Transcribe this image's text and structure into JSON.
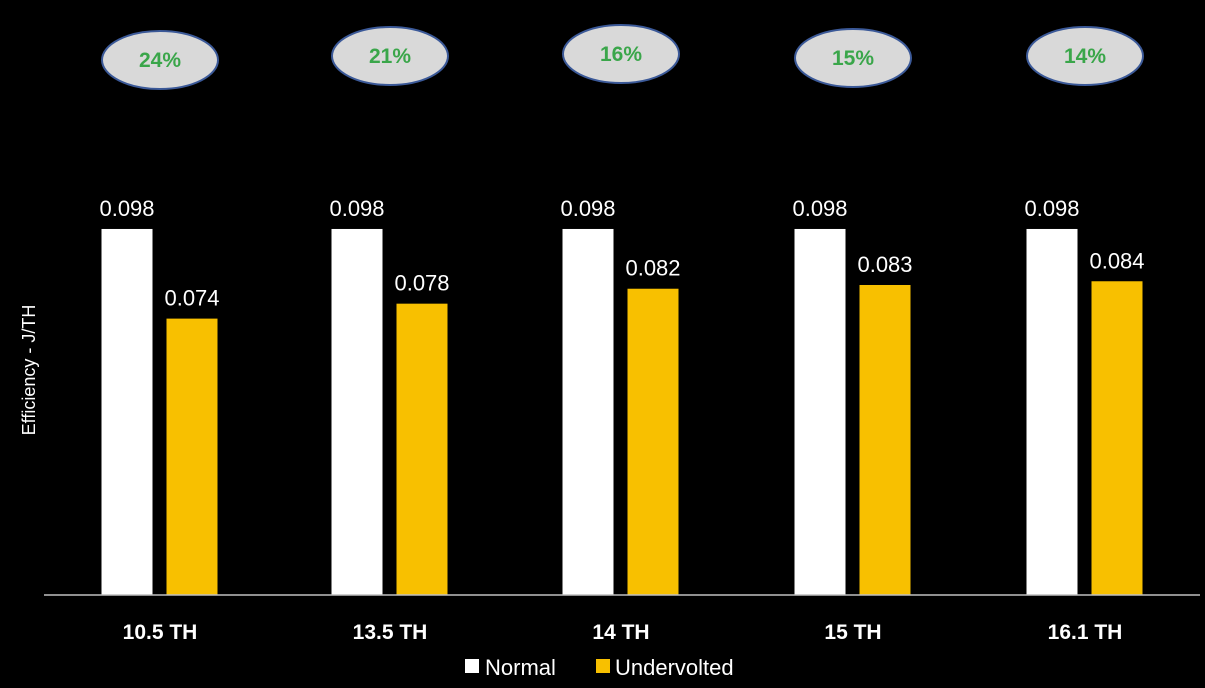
{
  "chart_data": {
    "type": "bar",
    "title": "",
    "xlabel": "",
    "ylabel": "Efficiency - J/TH",
    "ylim": [
      0,
      0.1
    ],
    "grid": false,
    "legend_position": "bottom",
    "categories": [
      "10.5 TH",
      "13.5 TH",
      "14 TH",
      "15 TH",
      "16.1 TH"
    ],
    "series": [
      {
        "name": "Normal",
        "color": "#ffffff",
        "values": [
          0.098,
          0.098,
          0.098,
          0.098,
          0.098
        ]
      },
      {
        "name": "Undervolted",
        "color": "#f8c000",
        "values": [
          0.074,
          0.078,
          0.082,
          0.083,
          0.084
        ]
      }
    ],
    "annotations": [
      "24%",
      "21%",
      "16%",
      "15%",
      "14%"
    ],
    "colors": {
      "background": "#000000",
      "badge_fill": "#d9d9d9",
      "badge_stroke": "#3b5998",
      "badge_text": "#3aa64a",
      "axis": "#bfbfbf"
    }
  }
}
